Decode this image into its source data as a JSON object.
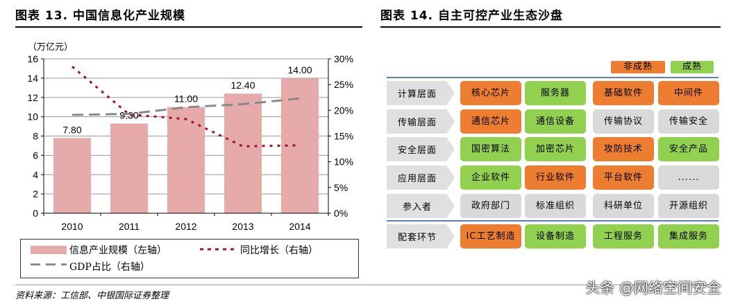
{
  "left": {
    "title": "图表 13. 中国信息化产业规模"
  },
  "right": {
    "title": "图表 14. 自主可控产业生态沙盘",
    "legend": [
      {
        "label": "非成熟",
        "color": "#ED7D31"
      },
      {
        "label": "成熟",
        "color": "#92D050"
      }
    ],
    "rows": [
      {
        "label": "计算层面",
        "cells": [
          {
            "text": "核心芯片",
            "state": "immature"
          },
          {
            "text": "服务器",
            "state": "mature"
          },
          {
            "text": "基础软件",
            "state": "immature"
          },
          {
            "text": "中间件",
            "state": "immature"
          }
        ]
      },
      {
        "label": "传输层面",
        "cells": [
          {
            "text": "通信芯片",
            "state": "immature"
          },
          {
            "text": "通信设备",
            "state": "mature"
          },
          {
            "text": "传输协议",
            "state": "none"
          },
          {
            "text": "传输安全",
            "state": "none"
          }
        ]
      },
      {
        "label": "安全层面",
        "cells": [
          {
            "text": "国密算法",
            "state": "mature"
          },
          {
            "text": "加密芯片",
            "state": "mature"
          },
          {
            "text": "攻防技术",
            "state": "immature"
          },
          {
            "text": "安全产品",
            "state": "mature"
          }
        ]
      },
      {
        "label": "应用层面",
        "cells": [
          {
            "text": "企业软件",
            "state": "mature"
          },
          {
            "text": "行业软件",
            "state": "immature"
          },
          {
            "text": "平台软件",
            "state": "immature"
          },
          {
            "text": "......",
            "state": "none"
          }
        ]
      },
      {
        "label": "参入者",
        "cells": [
          {
            "text": "政府部门",
            "state": "none"
          },
          {
            "text": "标准组织",
            "state": "none"
          },
          {
            "text": "科研单位",
            "state": "none"
          },
          {
            "text": "开源组织",
            "state": "none"
          }
        ]
      },
      {
        "label": "配套环节",
        "cells": [
          {
            "text": "IC工艺制造",
            "state": "immature"
          },
          {
            "text": "设备制造",
            "state": "mature"
          },
          {
            "text": "工程服务",
            "state": "mature"
          },
          {
            "text": "集成服务",
            "state": "mature"
          }
        ]
      }
    ]
  },
  "source": "资料来源：工信部、中银国际证券整理",
  "watermark": "头条 @网络空间安全",
  "chart_data": {
    "type": "bar",
    "unit_label": "（万亿元）",
    "categories": [
      "2010",
      "2011",
      "2012",
      "2013",
      "2014"
    ],
    "ylim": [
      0,
      16
    ],
    "yticks": [
      "0",
      "2",
      "4",
      "6",
      "8",
      "10",
      "12",
      "14",
      "16"
    ],
    "y2lim": [
      0,
      30
    ],
    "y2ticks": [
      "0%",
      "5%",
      "10%",
      "15%",
      "20%",
      "25%",
      "30%"
    ],
    "grid": true,
    "legend_placement": "bottom",
    "series": [
      {
        "name": "信息产业规模（左轴）",
        "type": "bar",
        "axis": "left",
        "color": "#E6AAAA",
        "values": [
          7.8,
          9.3,
          11.0,
          12.4,
          14.0
        ],
        "labels": [
          "7.80",
          "9.30",
          "11.00",
          "12.40",
          "14.00"
        ]
      },
      {
        "name": "同比增长（右轴）",
        "type": "line",
        "style": "dotted",
        "axis": "right",
        "color": "#A0102A",
        "values": [
          28.5,
          19.2,
          18.3,
          13.0,
          13.2
        ]
      },
      {
        "name": "GDP占比（右轴）",
        "type": "line",
        "style": "dashed",
        "axis": "right",
        "color": "#888888",
        "values": [
          19.1,
          19.3,
          20.6,
          21.2,
          22.3
        ]
      }
    ]
  }
}
